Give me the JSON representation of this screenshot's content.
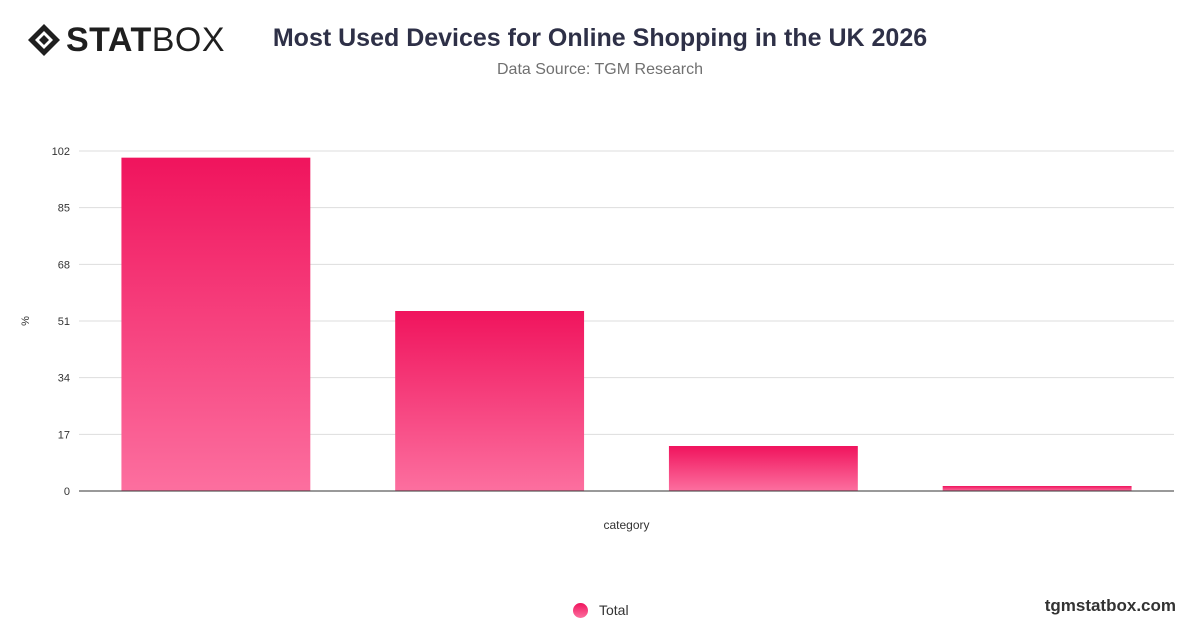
{
  "brand": {
    "logo_bold": "STAT",
    "logo_light": "BOX",
    "watermark": "tgmstatbox.com"
  },
  "header": {
    "title": "Most Used Devices for Online Shopping in the UK 2026",
    "subtitle": "Data Source: TGM Research"
  },
  "colors": {
    "bar_top": "#f0145d",
    "bar_bottom": "#fc6f9f",
    "grid": "#dddddd",
    "axis": "#333333"
  },
  "chart_data": {
    "type": "bar",
    "categories": [
      "",
      "",
      "",
      ""
    ],
    "series": [
      {
        "name": "Total",
        "values": [
          100,
          54,
          13.5,
          1.5
        ]
      }
    ],
    "xlabel": "category",
    "ylabel": "%",
    "ylim": [
      0,
      102
    ],
    "yticks": [
      0,
      17,
      34,
      51,
      68,
      85,
      102
    ],
    "grid": true,
    "legend_position": "bottom-center"
  }
}
